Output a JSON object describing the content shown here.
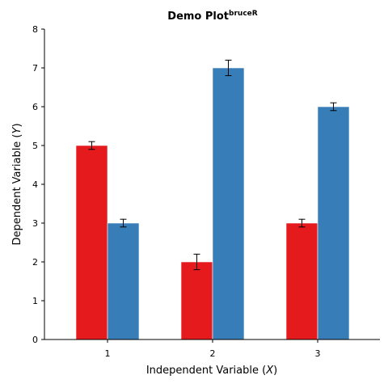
{
  "chart_data": {
    "type": "bar",
    "title": "Demo Plot",
    "title_superscript": "bruceR",
    "xlabel": "Independent Variable",
    "xlabel_var": "X",
    "ylabel": "Dependent Variable",
    "ylabel_var": "Y",
    "categories": [
      "1",
      "2",
      "3"
    ],
    "ylim": [
      0,
      8
    ],
    "yticks": [
      0,
      1,
      2,
      3,
      4,
      5,
      6,
      7,
      8
    ],
    "grid": false,
    "legend": "none",
    "series": [
      {
        "color": "#e41a1c",
        "values": [
          5,
          2,
          3
        ],
        "errors": [
          0.1,
          0.2,
          0.1
        ]
      },
      {
        "color": "#377eb8",
        "values": [
          3,
          7,
          6
        ],
        "errors": [
          0.1,
          0.2,
          0.1
        ]
      }
    ]
  }
}
